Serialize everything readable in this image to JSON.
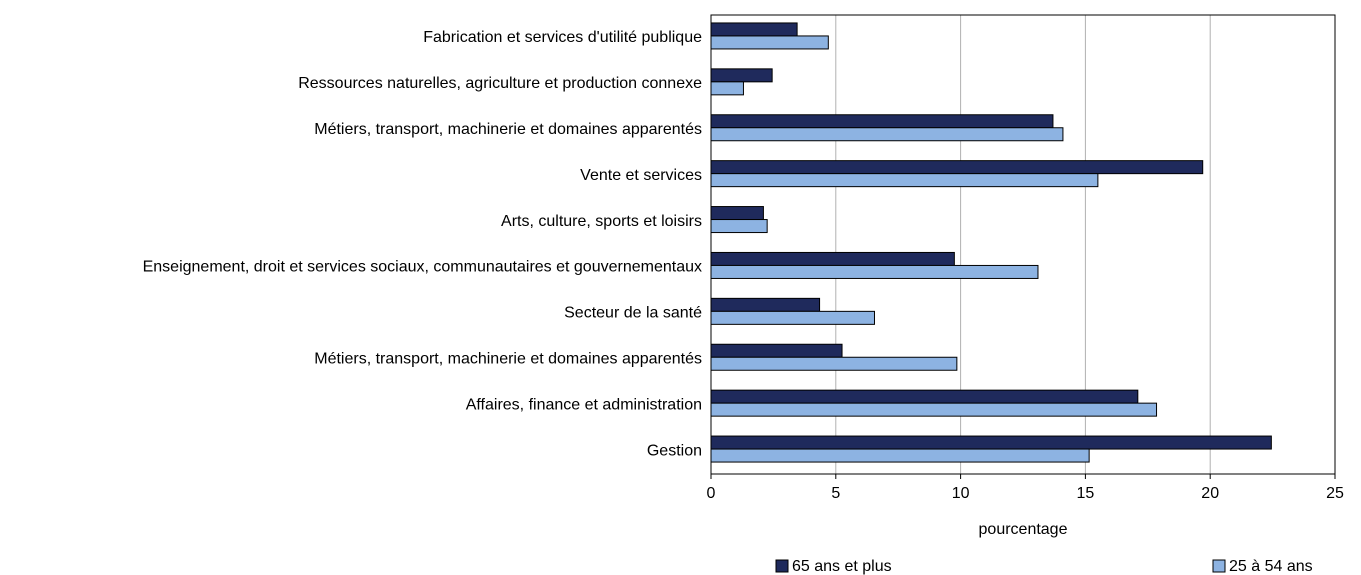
{
  "chart_data": {
    "type": "hbar",
    "categories": [
      "Fabrication et services d'utilité publique",
      "Ressources naturelles, agriculture et production connexe",
      "Métiers, transport, machinerie et domaines apparentés",
      "Vente et services",
      "Arts, culture, sports et loisirs",
      "Enseignement, droit et services sociaux, communautaires et gouvernementaux",
      "Secteur de la santé",
      "Métiers, transport, machinerie et domaines apparentés",
      "Affaires, finance et administration",
      "Gestion"
    ],
    "series": [
      {
        "name": "65 ans et plus",
        "color": "#1f2a5c",
        "values": [
          3.45,
          2.45,
          13.7,
          19.7,
          2.1,
          9.75,
          4.35,
          5.25,
          17.1,
          22.45
        ]
      },
      {
        "name": "25 à 54 ans",
        "color": "#8db3e2",
        "values": [
          4.7,
          1.3,
          14.1,
          15.5,
          2.25,
          13.1,
          6.55,
          9.85,
          17.85,
          15.15
        ]
      }
    ],
    "xlabel": "pourcentage",
    "xlim": [
      0,
      25
    ],
    "xticks": [
      0,
      5,
      10,
      15,
      20,
      25
    ],
    "grid": true,
    "legend": "bottom"
  }
}
